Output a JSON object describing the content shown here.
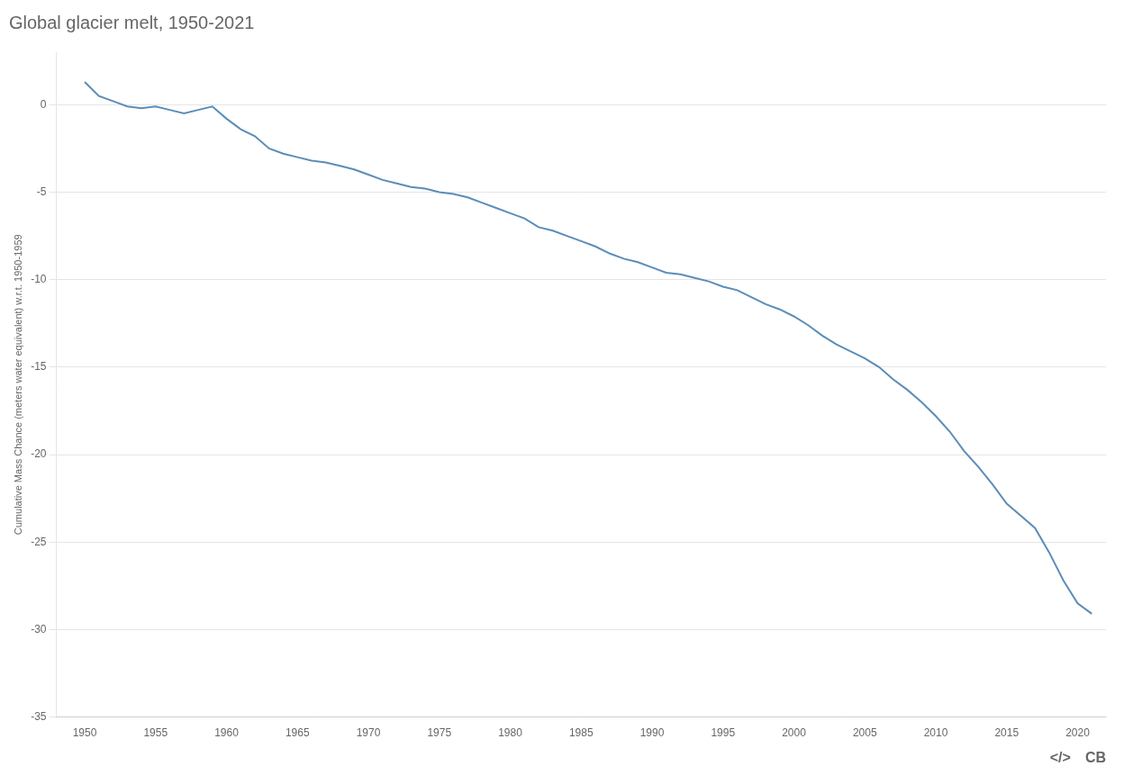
{
  "chart_data": {
    "type": "line",
    "title": "Global glacier melt, 1950-2021",
    "ylabel": "Cumulative Mass Chance (meters water equivalent) w.r.t. 1950-1959",
    "x": [
      1950,
      1951,
      1952,
      1953,
      1954,
      1955,
      1956,
      1957,
      1958,
      1959,
      1960,
      1961,
      1962,
      1963,
      1964,
      1965,
      1966,
      1967,
      1968,
      1969,
      1970,
      1971,
      1972,
      1973,
      1974,
      1975,
      1976,
      1977,
      1978,
      1979,
      1980,
      1981,
      1982,
      1983,
      1984,
      1985,
      1986,
      1987,
      1988,
      1989,
      1990,
      1991,
      1992,
      1993,
      1994,
      1995,
      1996,
      1997,
      1998,
      1999,
      2000,
      2001,
      2002,
      2003,
      2004,
      2005,
      2006,
      2007,
      2008,
      2009,
      2010,
      2011,
      2012,
      2013,
      2014,
      2015,
      2016,
      2017,
      2018,
      2019,
      2020,
      2021
    ],
    "values": [
      1.3,
      0.5,
      0.2,
      -0.1,
      -0.2,
      -0.1,
      -0.3,
      -0.5,
      -0.3,
      -0.1,
      -0.8,
      -1.4,
      -1.8,
      -2.5,
      -2.8,
      -3.0,
      -3.2,
      -3.3,
      -3.5,
      -3.7,
      -4.0,
      -4.3,
      -4.5,
      -4.7,
      -4.8,
      -5.0,
      -5.1,
      -5.3,
      -5.6,
      -5.9,
      -6.2,
      -6.5,
      -7.0,
      -7.2,
      -7.5,
      -7.8,
      -8.1,
      -8.5,
      -8.8,
      -9.0,
      -9.3,
      -9.6,
      -9.7,
      -9.9,
      -10.1,
      -10.4,
      -10.6,
      -11.0,
      -11.4,
      -11.7,
      -12.1,
      -12.6,
      -13.2,
      -13.7,
      -14.1,
      -14.5,
      -15.0,
      -15.7,
      -16.3,
      -17.0,
      -17.8,
      -18.7,
      -19.8,
      -20.7,
      -21.7,
      -22.8,
      -23.5,
      -24.2,
      -25.6,
      -27.2,
      -28.5,
      -29.1
    ],
    "color": "#5b8db8",
    "xlim": [
      1948,
      2022
    ],
    "xticks": [
      1950,
      1955,
      1960,
      1965,
      1970,
      1975,
      1980,
      1985,
      1990,
      1995,
      2000,
      2005,
      2010,
      2015,
      2020
    ],
    "ylim": [
      -35,
      3
    ],
    "yticks": [
      0,
      -5,
      -10,
      -15,
      -20,
      -25,
      -30,
      -35
    ],
    "grid": "y",
    "annotations": [
      "</>",
      "CB"
    ]
  }
}
